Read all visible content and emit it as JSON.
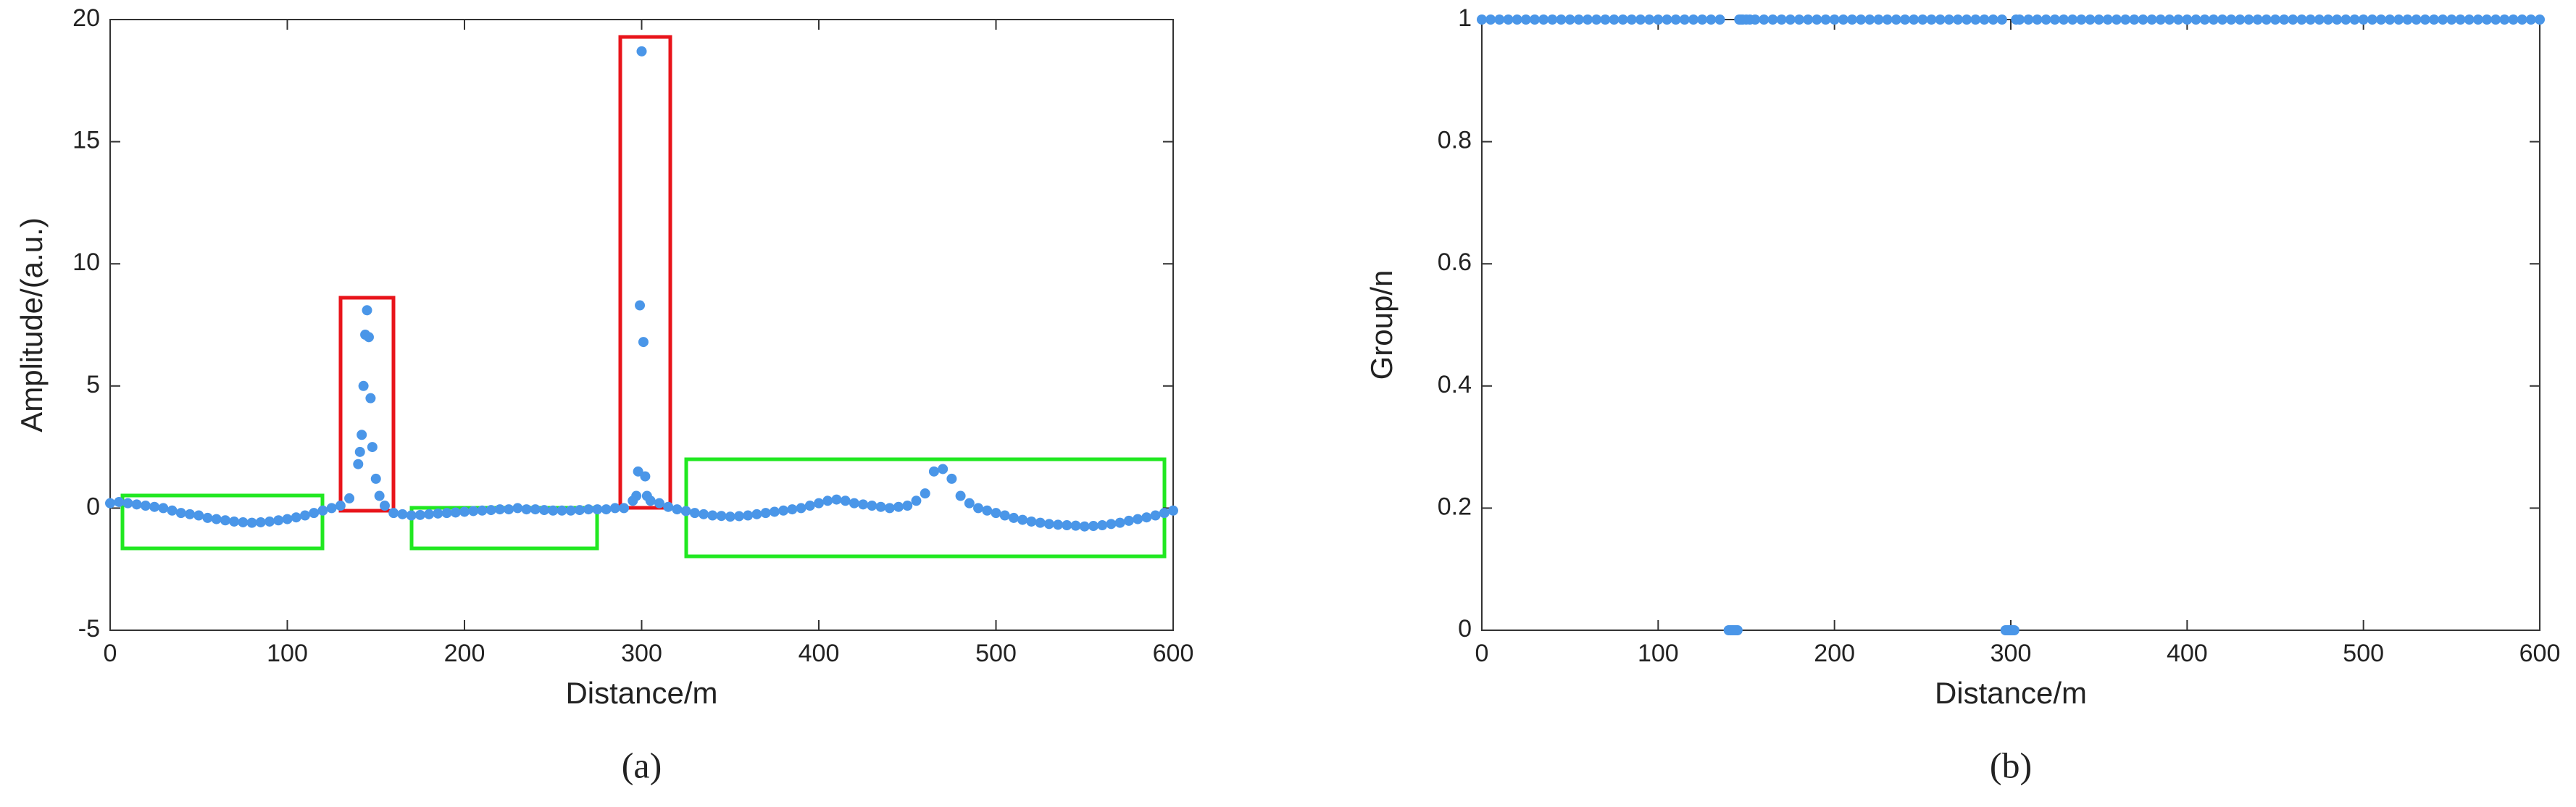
{
  "chart_data": [
    {
      "type": "scatter",
      "x_label": "Distance/m",
      "y_label": "Amplitude/(a.u.)",
      "caption": "(a)",
      "color": "#4a96e8",
      "xlim": [
        0,
        600
      ],
      "xticks": [
        0,
        100,
        200,
        300,
        400,
        500,
        600
      ],
      "ylim": [
        -5,
        20
      ],
      "yticks": [
        -5,
        0,
        5,
        10,
        15,
        20
      ],
      "x": [
        0,
        5,
        10,
        15,
        20,
        25,
        30,
        35,
        40,
        45,
        50,
        55,
        60,
        65,
        70,
        75,
        80,
        85,
        90,
        95,
        100,
        105,
        110,
        115,
        120,
        125,
        130,
        135,
        140,
        141,
        142,
        143,
        144,
        145,
        146,
        147,
        148,
        150,
        152,
        155,
        160,
        165,
        170,
        175,
        180,
        185,
        190,
        195,
        200,
        205,
        210,
        215,
        220,
        225,
        230,
        235,
        240,
        245,
        250,
        255,
        260,
        265,
        270,
        275,
        280,
        285,
        290,
        295,
        297,
        298,
        299,
        300,
        301,
        302,
        303,
        305,
        310,
        315,
        320,
        325,
        330,
        335,
        340,
        345,
        350,
        355,
        360,
        365,
        370,
        375,
        380,
        385,
        390,
        395,
        400,
        405,
        410,
        415,
        420,
        425,
        430,
        435,
        440,
        445,
        450,
        455,
        460,
        465,
        470,
        475,
        480,
        485,
        490,
        495,
        500,
        505,
        510,
        515,
        520,
        525,
        530,
        535,
        540,
        545,
        550,
        555,
        560,
        565,
        570,
        575,
        580,
        585,
        590,
        595,
        600
      ],
      "values": [
        0.2,
        0.25,
        0.2,
        0.15,
        0.1,
        0.05,
        0,
        -0.1,
        -0.2,
        -0.25,
        -0.3,
        -0.4,
        -0.45,
        -0.5,
        -0.55,
        -0.58,
        -0.6,
        -0.58,
        -0.55,
        -0.5,
        -0.45,
        -0.38,
        -0.3,
        -0.2,
        -0.1,
        0,
        0.1,
        0.4,
        1.8,
        2.3,
        3,
        5,
        7.1,
        8.1,
        7,
        4.5,
        2.5,
        1.2,
        0.5,
        0.1,
        -0.2,
        -0.25,
        -0.3,
        -0.28,
        -0.25,
        -0.22,
        -0.2,
        -0.18,
        -0.15,
        -0.12,
        -0.1,
        -0.08,
        -0.05,
        -0.05,
        0,
        -0.05,
        -0.05,
        -0.08,
        -0.1,
        -0.1,
        -0.1,
        -0.08,
        -0.05,
        -0.05,
        -0.05,
        0,
        0,
        0.3,
        0.5,
        1.5,
        8.3,
        18.7,
        6.8,
        1.3,
        0.5,
        0.3,
        0.2,
        0.05,
        -0.05,
        -0.12,
        -0.2,
        -0.25,
        -0.3,
        -0.32,
        -0.35,
        -0.33,
        -0.3,
        -0.25,
        -0.2,
        -0.15,
        -0.1,
        -0.05,
        0,
        0.1,
        0.2,
        0.3,
        0.35,
        0.3,
        0.2,
        0.15,
        0.1,
        0.05,
        0,
        0.05,
        0.1,
        0.3,
        0.6,
        1.5,
        1.6,
        1.2,
        0.5,
        0.2,
        0,
        -0.1,
        -0.2,
        -0.3,
        -0.4,
        -0.48,
        -0.55,
        -0.6,
        -0.65,
        -0.68,
        -0.7,
        -0.72,
        -0.75,
        -0.73,
        -0.7,
        -0.65,
        -0.6,
        -0.52,
        -0.45,
        -0.38,
        -0.3,
        -0.2,
        -0.1
      ]
    },
    {
      "type": "scatter",
      "x_label": "Distance/m",
      "y_label": "Group/n",
      "caption": "(b)",
      "color": "#4a96e8",
      "xlim": [
        0,
        600
      ],
      "xticks": [
        0,
        100,
        200,
        300,
        400,
        500,
        600
      ],
      "ylim": [
        0,
        1
      ],
      "yticks": [
        0,
        0.2,
        0.4,
        0.6,
        0.8,
        1
      ],
      "x": [
        0,
        5,
        10,
        15,
        20,
        25,
        30,
        35,
        40,
        45,
        50,
        55,
        60,
        65,
        70,
        75,
        80,
        85,
        90,
        95,
        100,
        105,
        110,
        115,
        120,
        125,
        130,
        135,
        140,
        141,
        142,
        143,
        144,
        145,
        146,
        147,
        148,
        150,
        152,
        155,
        160,
        165,
        170,
        175,
        180,
        185,
        190,
        195,
        200,
        205,
        210,
        215,
        220,
        225,
        230,
        235,
        240,
        245,
        250,
        255,
        260,
        265,
        270,
        275,
        280,
        285,
        290,
        295,
        297,
        298,
        299,
        300,
        301,
        302,
        303,
        305,
        310,
        315,
        320,
        325,
        330,
        335,
        340,
        345,
        350,
        355,
        360,
        365,
        370,
        375,
        380,
        385,
        390,
        395,
        400,
        405,
        410,
        415,
        420,
        425,
        430,
        435,
        440,
        445,
        450,
        455,
        460,
        465,
        470,
        475,
        480,
        485,
        490,
        495,
        500,
        505,
        510,
        515,
        520,
        525,
        530,
        535,
        540,
        545,
        550,
        555,
        560,
        565,
        570,
        575,
        580,
        585,
        590,
        595,
        600
      ],
      "values": [
        1,
        1,
        1,
        1,
        1,
        1,
        1,
        1,
        1,
        1,
        1,
        1,
        1,
        1,
        1,
        1,
        1,
        1,
        1,
        1,
        1,
        1,
        1,
        1,
        1,
        1,
        1,
        1,
        0,
        0,
        0,
        0,
        0,
        0,
        1,
        1,
        1,
        1,
        1,
        1,
        1,
        1,
        1,
        1,
        1,
        1,
        1,
        1,
        1,
        1,
        1,
        1,
        1,
        1,
        1,
        1,
        1,
        1,
        1,
        1,
        1,
        1,
        1,
        1,
        1,
        1,
        1,
        1,
        0,
        0,
        0,
        0,
        0,
        0,
        1,
        1,
        1,
        1,
        1,
        1,
        1,
        1,
        1,
        1,
        1,
        1,
        1,
        1,
        1,
        1,
        1,
        1,
        1,
        1,
        1,
        1,
        1,
        1,
        1,
        1,
        1,
        1,
        1,
        1,
        1,
        1,
        1,
        1,
        1,
        1,
        1,
        1,
        1,
        1,
        1,
        1,
        1,
        1,
        1,
        1,
        1,
        1,
        1,
        1,
        1,
        1,
        1,
        1,
        1,
        1,
        1,
        1,
        1,
        1,
        1
      ]
    }
  ]
}
